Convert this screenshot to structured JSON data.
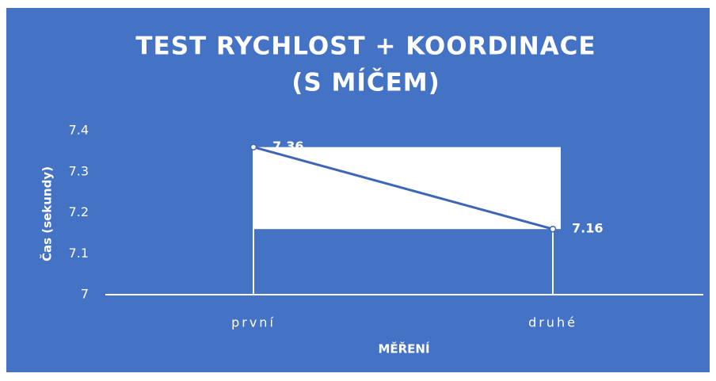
{
  "chart_data": {
    "type": "line",
    "title": [
      "TEST RYCHLOST + KOORDINACE",
      "(S MÍČEM)"
    ],
    "x_label": "MĚŘENÍ",
    "y_label": "Čas (sekundy)",
    "categories": [
      "první",
      "druhé"
    ],
    "series": [
      {
        "name": "Čas",
        "color": "#3e66b6",
        "values": [
          7.36,
          7.16
        ],
        "value_labels": [
          "7.36",
          "7.16"
        ]
      }
    ],
    "ylim": [
      7,
      7.4
    ],
    "yticks": [
      7,
      7.1,
      7.2,
      7.3,
      7.4
    ],
    "background": "#4472c4"
  }
}
